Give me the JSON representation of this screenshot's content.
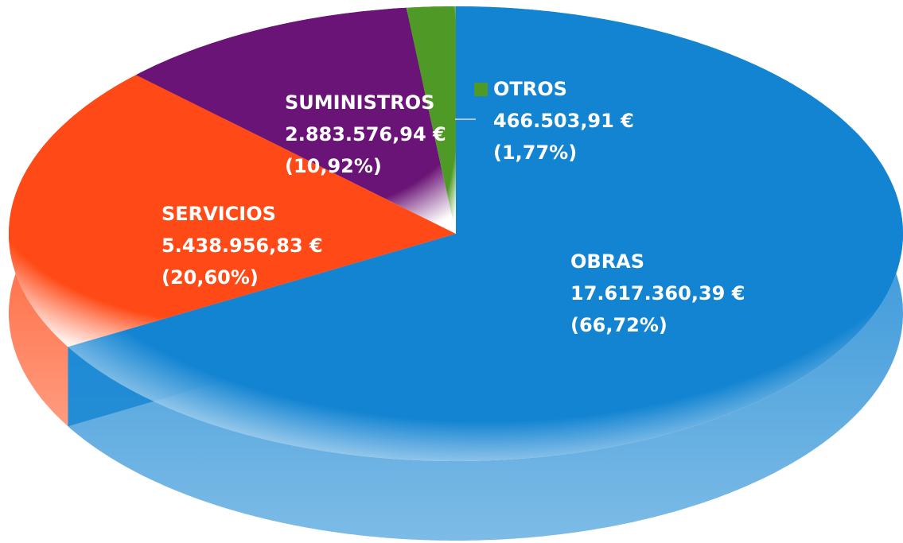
{
  "chart_data": {
    "type": "pie",
    "categories": [
      "OBRAS",
      "SERVICIOS",
      "SUMINISTROS",
      "OTROS"
    ],
    "values": [
      17617360.39,
      5438956.83,
      2883576.94,
      466503.91
    ],
    "value_labels": [
      "17.617.360,39 €",
      "5.438.956,83 €",
      "2.883.576,94 €",
      "466.503,91 €"
    ],
    "percentages": [
      66.72,
      20.6,
      10.92,
      1.77
    ],
    "percentage_labels": [
      "(66,72%)",
      "(20,60%)",
      "(10,92%)",
      "(1,77%)"
    ],
    "colors": [
      "#1384d2",
      "#ff4a17",
      "#6b1477",
      "#4f9a26"
    ]
  }
}
